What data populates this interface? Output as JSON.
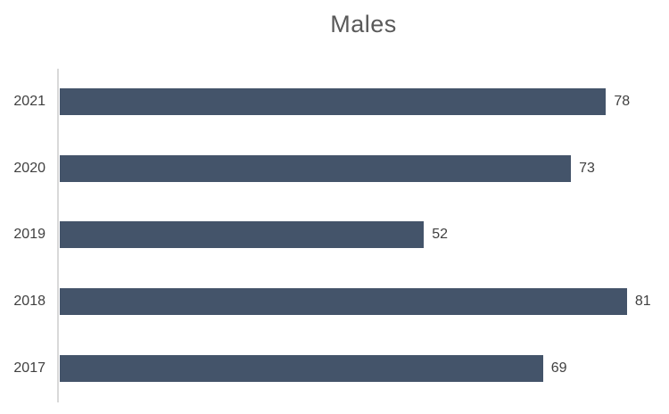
{
  "chart_data": {
    "type": "bar",
    "orientation": "horizontal",
    "title": "Males",
    "categories": [
      "2021",
      "2020",
      "2019",
      "2018",
      "2017"
    ],
    "values": [
      78,
      73,
      52,
      81,
      69
    ],
    "xlabel": "",
    "ylabel": "",
    "xlim": [
      0,
      87
    ],
    "grid": false,
    "legend": false,
    "data_labels": "outside-end",
    "bar_color": "#44546A",
    "axis_line_color": "#D9D9D9",
    "title_color": "#595959",
    "tick_label_color": "#404040",
    "value_label_color": "#404040"
  }
}
